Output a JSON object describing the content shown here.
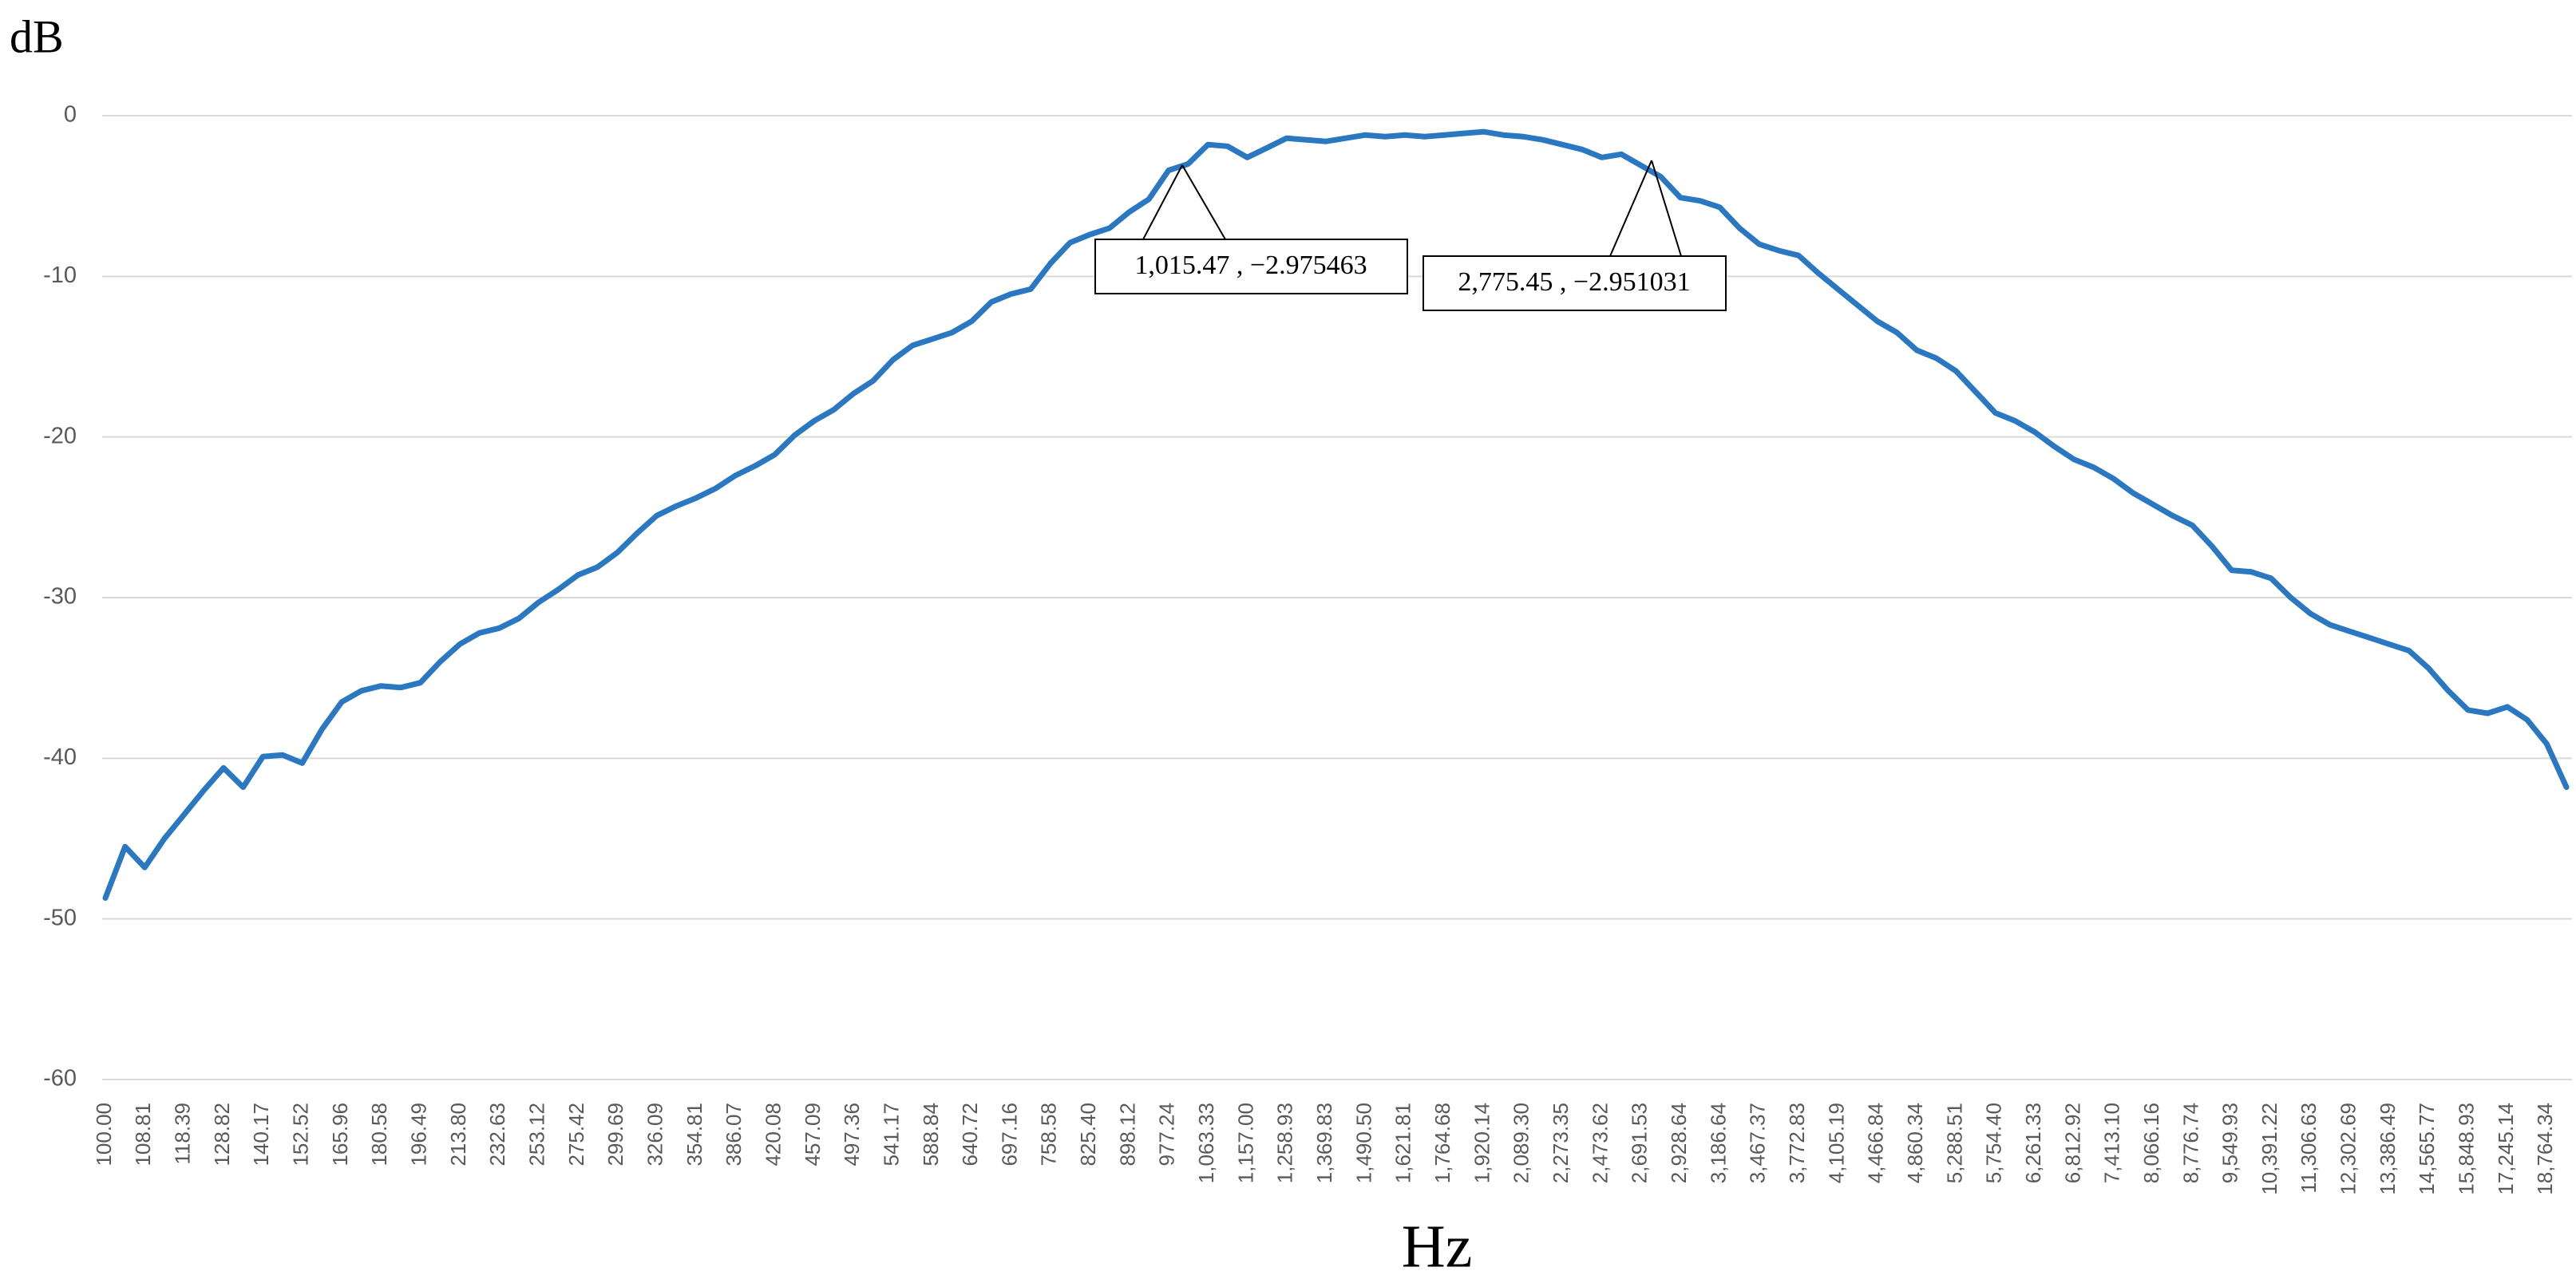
{
  "chart_data": {
    "type": "line",
    "y_label": "dB",
    "x_label": "Hz",
    "categories": [
      "100.00",
      null,
      "108.81",
      null,
      "118.39",
      null,
      "128.82",
      null,
      "140.17",
      null,
      "152.52",
      null,
      "165.96",
      null,
      "180.58",
      null,
      "196.49",
      null,
      "213.80",
      null,
      "232.63",
      null,
      "253.12",
      null,
      "275.42",
      null,
      "299.69",
      null,
      "326.09",
      null,
      "354.81",
      null,
      "386.07",
      null,
      "420.08",
      null,
      "457.09",
      null,
      "497.36",
      null,
      "541.17",
      null,
      "588.84",
      null,
      "640.72",
      null,
      "697.16",
      null,
      "758.58",
      null,
      "825.40",
      null,
      "898.12",
      null,
      "977.24",
      null,
      "1,063.33",
      null,
      "1,157.00",
      null,
      "1,258.93",
      null,
      "1,369.83",
      null,
      "1,490.50",
      null,
      "1,621.81",
      null,
      "1,764.68",
      null,
      "1,920.14",
      null,
      "2,089.30",
      null,
      "2,273.35",
      null,
      "2,473.62",
      null,
      "2,691.53",
      null,
      "2,928.64",
      null,
      "3,186.64",
      null,
      "3,467.37",
      null,
      "3,772.83",
      null,
      "4,105.19",
      null,
      "4,466.84",
      null,
      "4,860.34",
      null,
      "5,288.51",
      null,
      "5,754.40",
      null,
      "6,261.33",
      null,
      "6,812.92",
      null,
      "7,413.10",
      null,
      "8,066.16",
      null,
      "8,776.74",
      null,
      "9,549.93",
      null,
      "10,391.22",
      null,
      "11,306.63",
      null,
      "12,302.69",
      null,
      "13,386.49",
      null,
      "14,565.77",
      null,
      "15,848.93",
      null,
      "17,245.14",
      null,
      "18,764.34",
      null
    ],
    "values": [
      -48.7,
      -45.5,
      -46.8,
      -45.0,
      -43.5,
      -42.0,
      -40.6,
      -41.8,
      -39.9,
      -39.8,
      -40.3,
      -38.2,
      -36.5,
      -35.8,
      -35.5,
      -35.6,
      -35.3,
      -34.0,
      -32.9,
      -32.2,
      -31.9,
      -31.3,
      -30.3,
      -29.5,
      -28.6,
      -28.1,
      -27.2,
      -26.0,
      -24.9,
      -24.3,
      -23.8,
      -23.2,
      -22.4,
      -21.8,
      -21.1,
      -19.9,
      -19.0,
      -18.3,
      -17.3,
      -16.5,
      -15.2,
      -14.3,
      -13.9,
      -13.5,
      -12.8,
      -11.6,
      -11.1,
      -10.8,
      -9.2,
      -7.9,
      -7.4,
      -7.0,
      -6.0,
      -5.2,
      -3.4,
      -3.0,
      -1.8,
      -1.9,
      -2.6,
      -2.0,
      -1.4,
      -1.5,
      -1.6,
      -1.4,
      -1.2,
      -1.3,
      -1.2,
      -1.3,
      -1.2,
      -1.1,
      -1.0,
      -1.2,
      -1.3,
      -1.5,
      -1.8,
      -2.1,
      -2.6,
      -2.4,
      -3.1,
      -3.8,
      -5.1,
      -5.3,
      -5.7,
      -7.0,
      -8.0,
      -8.4,
      -8.7,
      -9.8,
      -10.8,
      -11.8,
      -12.8,
      -13.5,
      -14.6,
      -15.1,
      -15.9,
      -17.2,
      -18.5,
      -19.0,
      -19.7,
      -20.6,
      -21.4,
      -21.9,
      -22.6,
      -23.5,
      -24.2,
      -24.9,
      -25.5,
      -26.8,
      -28.3,
      -28.4,
      -28.8,
      -30.0,
      -31.0,
      -31.7,
      -32.1,
      -32.5,
      -32.9,
      -33.3,
      -34.4,
      -35.8,
      -37.0,
      -37.2,
      -36.8,
      -37.6,
      -39.1,
      -41.8
    ],
    "color": "#2a77c2",
    "ylim": [
      -60,
      0
    ],
    "yticks": [
      -60,
      -50,
      -40,
      -30,
      -20,
      -10,
      0
    ],
    "grid": true,
    "annotations": [
      {
        "text": "1,015.47 , −2.975463"
      },
      {
        "text": "2,775.45 , −2.951031"
      }
    ]
  }
}
